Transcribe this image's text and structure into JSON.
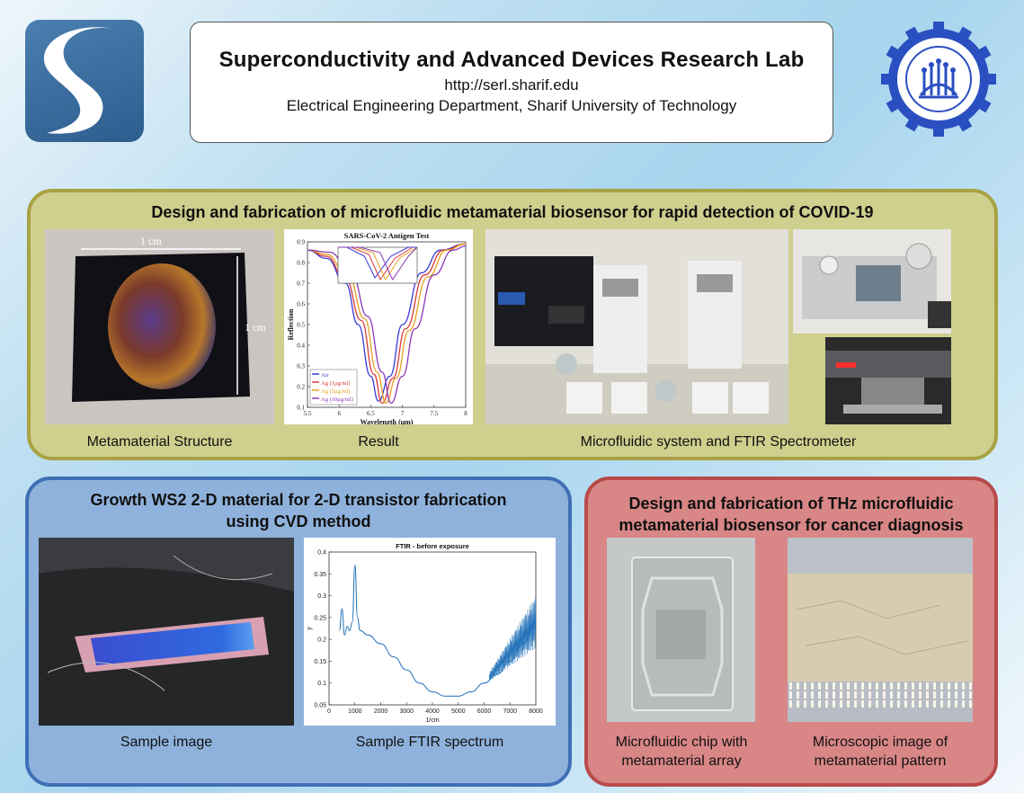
{
  "header": {
    "title": "Superconductivity and Advanced Devices Research Lab",
    "url": "http://serl.sharif.edu",
    "department": "Electrical Engineering Department, Sharif University of Technology"
  },
  "covid_panel": {
    "title": "Design and fabrication of microfluidic metamaterial biosensor for rapid detection of COVID-19",
    "metamaterial": {
      "caption": "Metamaterial Structure",
      "dim_top": "1 cm",
      "dim_right": "1 cm"
    },
    "result": {
      "caption": "Result"
    },
    "system": {
      "caption": "Microfluidic system and FTIR Spectrometer"
    }
  },
  "ws2_panel": {
    "title_line1": "Growth WS2 2-D material for 2-D transistor fabrication",
    "title_line2": "using CVD method",
    "sample_caption": "Sample image",
    "ftir_caption": "Sample FTIR spectrum"
  },
  "thz_panel": {
    "title_line1": "Design and fabrication of THz microfluidic",
    "title_line2": "metamaterial biosensor for cancer diagnosis",
    "chip_caption_line1": "Microfluidic chip with",
    "chip_caption_line2": "metamaterial array",
    "micro_caption_line1": "Microscopic image of",
    "micro_caption_line2": "metamaterial pattern"
  },
  "chart_data": [
    {
      "type": "line",
      "title": "SARS-CoV-2 Antigen Test",
      "xlabel": "Wavelength (μm)",
      "ylabel": "Reflection",
      "xlim": [
        5.5,
        8
      ],
      "ylim": [
        0.1,
        0.9
      ],
      "x_ticks": [
        "5.5",
        "6",
        "6.5",
        "7",
        "7.5",
        "8"
      ],
      "y_ticks": [
        "0.1",
        "0.2",
        "0.3",
        "0.4",
        "0.5",
        "0.6",
        "0.7",
        "0.8",
        "0.9"
      ],
      "legend": "bottom-left",
      "series": [
        {
          "name": "Air",
          "color": "#3a3ad8",
          "x": [
            5.5,
            5.8,
            6.1,
            6.3,
            6.5,
            6.62,
            6.8,
            7.0,
            7.3,
            7.6,
            8.0
          ],
          "y": [
            0.86,
            0.82,
            0.7,
            0.5,
            0.25,
            0.13,
            0.25,
            0.5,
            0.75,
            0.86,
            0.89
          ]
        },
        {
          "name": "Ag (1μg/ml)",
          "color": "#d83a3a",
          "x": [
            5.5,
            5.8,
            6.1,
            6.35,
            6.55,
            6.68,
            6.85,
            7.05,
            7.35,
            7.65,
            8.0
          ],
          "y": [
            0.86,
            0.83,
            0.72,
            0.52,
            0.26,
            0.12,
            0.24,
            0.48,
            0.74,
            0.86,
            0.89
          ]
        },
        {
          "name": "Ag (5μg/ml)",
          "color": "#e6a020",
          "x": [
            5.5,
            5.8,
            6.15,
            6.4,
            6.6,
            6.74,
            6.9,
            7.1,
            7.4,
            7.7,
            8.0
          ],
          "y": [
            0.86,
            0.84,
            0.73,
            0.53,
            0.27,
            0.12,
            0.24,
            0.47,
            0.73,
            0.86,
            0.89
          ]
        },
        {
          "name": "Ag (10μg/ml)",
          "color": "#8a3ab8",
          "x": [
            5.5,
            5.85,
            6.2,
            6.45,
            6.68,
            6.82,
            7.0,
            7.2,
            7.5,
            7.8,
            8.0
          ],
          "y": [
            0.86,
            0.85,
            0.74,
            0.54,
            0.27,
            0.12,
            0.25,
            0.48,
            0.74,
            0.86,
            0.88
          ]
        }
      ]
    },
    {
      "type": "line",
      "title": "FTIR - before exposure",
      "xlabel": "1/cm",
      "ylabel": "y",
      "xlim": [
        0,
        8000
      ],
      "ylim": [
        0.05,
        0.4
      ],
      "x_ticks": [
        "0",
        "1000",
        "2000",
        "3000",
        "4000",
        "5000",
        "6000",
        "7000",
        "8000"
      ],
      "y_ticks": [
        "0.05",
        "0.1",
        "0.15",
        "0.2",
        "0.25",
        "0.3",
        "0.35",
        "0.4"
      ],
      "series": [
        {
          "color": "#1f6fb8",
          "x": [
            400,
            500,
            600,
            700,
            800,
            900,
            1000,
            1100,
            1200,
            1500,
            2000,
            2500,
            3000,
            3500,
            4000,
            4500,
            5000,
            5500,
            6000,
            6500,
            7000,
            7500,
            8000
          ],
          "y": [
            0.22,
            0.27,
            0.21,
            0.23,
            0.22,
            0.24,
            0.37,
            0.25,
            0.22,
            0.21,
            0.19,
            0.16,
            0.13,
            0.1,
            0.08,
            0.07,
            0.07,
            0.08,
            0.1,
            0.12,
            0.15,
            0.19,
            0.24
          ]
        }
      ]
    }
  ]
}
